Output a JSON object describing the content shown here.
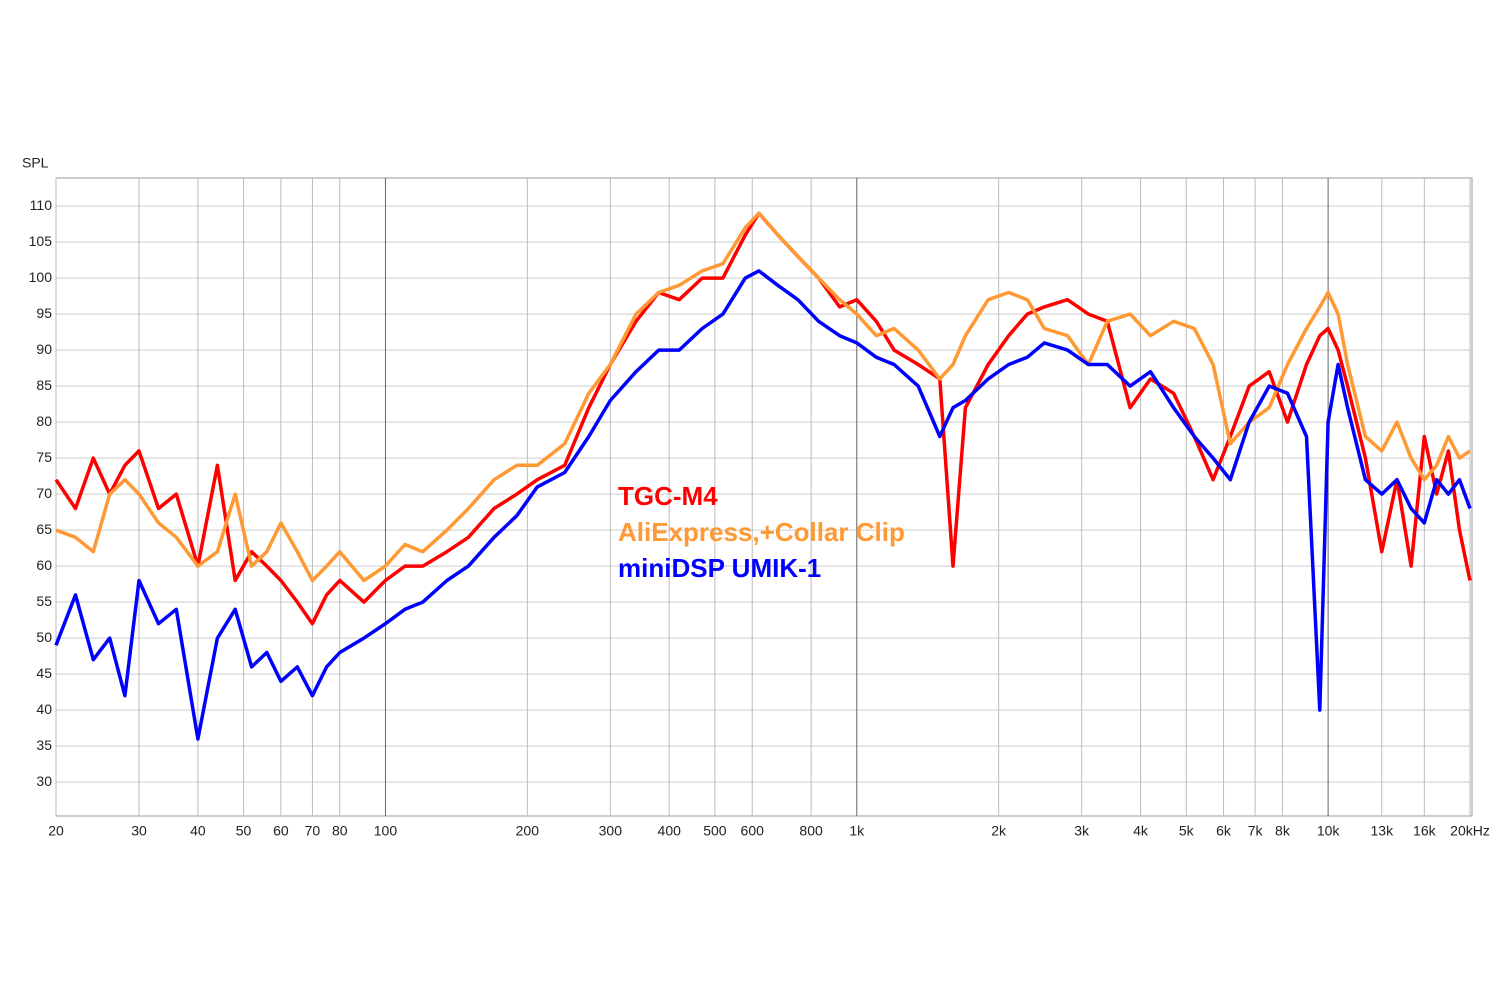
{
  "chart_data": {
    "type": "line",
    "y_label": "SPL",
    "x": [
      20,
      22,
      24,
      26,
      28,
      30,
      33,
      36,
      40,
      44,
      48,
      52,
      56,
      60,
      65,
      70,
      75,
      80,
      90,
      100,
      110,
      120,
      135,
      150,
      170,
      190,
      210,
      240,
      270,
      300,
      340,
      380,
      420,
      470,
      520,
      580,
      620,
      680,
      750,
      830,
      920,
      1000,
      1100,
      1200,
      1350,
      1500,
      1600,
      1700,
      1900,
      2100,
      2300,
      2500,
      2800,
      3100,
      3400,
      3800,
      4200,
      4700,
      5200,
      5700,
      6200,
      6800,
      7500,
      8200,
      9000,
      9600,
      10000,
      10500,
      11000,
      12000,
      13000,
      14000,
      15000,
      16000,
      17000,
      18000,
      19000,
      20000
    ],
    "series": [
      {
        "name": "TGC-M4",
        "color": "#ff0000",
        "values": [
          72,
          68,
          75,
          70,
          74,
          76,
          68,
          70,
          60,
          74,
          58,
          62,
          60,
          58,
          55,
          52,
          56,
          58,
          55,
          58,
          60,
          60,
          62,
          64,
          68,
          70,
          72,
          74,
          82,
          88,
          94,
          98,
          97,
          100,
          100,
          106,
          109,
          106,
          103,
          100,
          96,
          97,
          94,
          90,
          88,
          86,
          60,
          82,
          88,
          92,
          95,
          96,
          97,
          95,
          94,
          82,
          86,
          84,
          78,
          72,
          78,
          85,
          87,
          80,
          88,
          92,
          93,
          90,
          85,
          75,
          62,
          72,
          60,
          78,
          70,
          76,
          65,
          58
        ]
      },
      {
        "name": "AliExpress,+Collar Clip",
        "color": "#ff9933",
        "values": [
          65,
          64,
          62,
          70,
          72,
          70,
          66,
          64,
          60,
          62,
          70,
          60,
          62,
          66,
          62,
          58,
          60,
          62,
          58,
          60,
          63,
          62,
          65,
          68,
          72,
          74,
          74,
          77,
          84,
          88,
          95,
          98,
          99,
          101,
          102,
          107,
          109,
          106,
          103,
          100,
          97,
          95,
          92,
          93,
          90,
          86,
          88,
          92,
          97,
          98,
          97,
          93,
          92,
          88,
          94,
          95,
          92,
          94,
          93,
          88,
          77,
          80,
          82,
          88,
          93,
          96,
          98,
          95,
          88,
          78,
          76,
          80,
          75,
          72,
          74,
          78,
          75,
          76
        ]
      },
      {
        "name": "miniDSP UMIK-1",
        "color": "#0000ff",
        "values": [
          49,
          56,
          47,
          50,
          42,
          58,
          52,
          54,
          36,
          50,
          54,
          46,
          48,
          44,
          46,
          42,
          46,
          48,
          50,
          52,
          54,
          55,
          58,
          60,
          64,
          67,
          71,
          73,
          78,
          83,
          87,
          90,
          90,
          93,
          95,
          100,
          101,
          99,
          97,
          94,
          92,
          91,
          89,
          88,
          85,
          78,
          82,
          83,
          86,
          88,
          89,
          91,
          90,
          88,
          88,
          85,
          87,
          82,
          78,
          75,
          72,
          80,
          85,
          84,
          78,
          40,
          80,
          88,
          82,
          72,
          70,
          72,
          68,
          66,
          72,
          70,
          72,
          68
        ]
      }
    ],
    "log_x": true,
    "xlim": [
      20,
      20000
    ],
    "ylim": [
      25.3,
      113.9
    ],
    "xticks": [
      20,
      30,
      40,
      50,
      60,
      70,
      80,
      100,
      200,
      300,
      400,
      500,
      600,
      800,
      {
        "value": 1000,
        "label": "1k"
      },
      {
        "value": 2000,
        "label": "2k"
      },
      {
        "value": 3000,
        "label": "3k"
      },
      {
        "value": 4000,
        "label": "4k"
      },
      {
        "value": 5000,
        "label": "5k"
      },
      {
        "value": 6000,
        "label": "6k"
      },
      {
        "value": 7000,
        "label": "7k"
      },
      {
        "value": 8000,
        "label": "8k"
      },
      {
        "value": 10000,
        "label": "10k"
      },
      {
        "value": 13000,
        "label": "13k"
      },
      {
        "value": 16000,
        "label": "16k"
      },
      {
        "value": 20000,
        "label": "20kHz"
      }
    ],
    "yticks": [
      30,
      35,
      40,
      45,
      50,
      55,
      60,
      65,
      70,
      75,
      80,
      85,
      90,
      95,
      100,
      105,
      110
    ],
    "grid": true
  }
}
